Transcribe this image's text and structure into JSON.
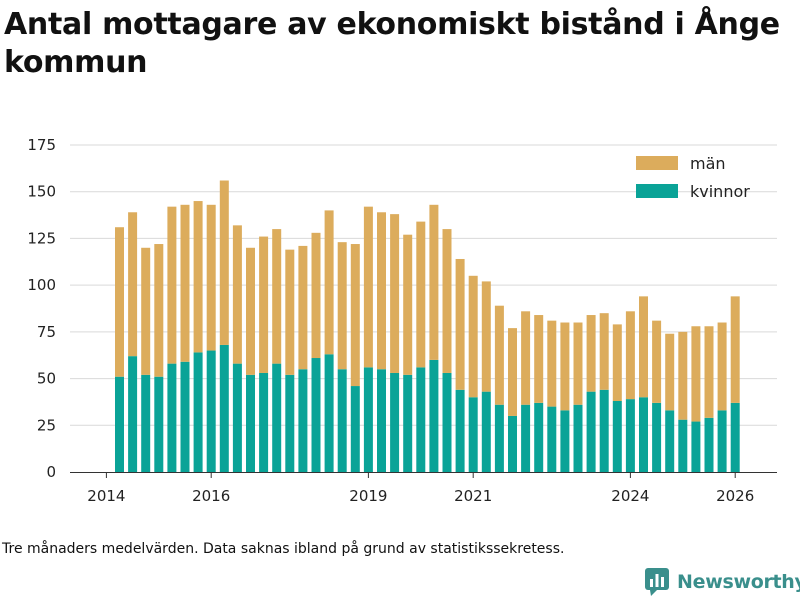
{
  "title": "Antal mottagare av ekonomiskt bistånd i Ånge kommun",
  "footnote": "Tre månaders medelvärden. Data saknas ibland på grund av statistikssekretess.",
  "brand": {
    "name": "Newsworthy",
    "icon": "bar-chart-logo-icon",
    "color": "#3a8f8c"
  },
  "chart_data": {
    "type": "bar",
    "stacked": true,
    "title": "Antal mottagare av ekonomiskt bistånd i Ånge kommun",
    "xlabel": "",
    "ylabel": "",
    "ylim": [
      0,
      175
    ],
    "y_ticks": [
      0,
      25,
      50,
      75,
      100,
      125,
      150,
      175
    ],
    "x_ticks": [
      {
        "label": "2014",
        "year": 2014
      },
      {
        "label": "2016",
        "year": 2016
      },
      {
        "label": "2019",
        "year": 2019
      },
      {
        "label": "2021",
        "year": 2021
      },
      {
        "label": "2024",
        "year": 2024
      },
      {
        "label": "2026",
        "year": 2026
      }
    ],
    "grid": true,
    "legend_position": "top-right",
    "categories": [
      "2014 Q2",
      "2014 Q3",
      "2014 Q4",
      "2015 Q1",
      "2015 Q2",
      "2015 Q3",
      "2015 Q4",
      "2016 Q1",
      "2016 Q2",
      "2016 Q3",
      "2016 Q4",
      "2017 Q1",
      "2017 Q2",
      "2017 Q3",
      "2017 Q4",
      "2018 Q1",
      "2018 Q2",
      "2018 Q3",
      "2018 Q4",
      "2019 Q1",
      "2019 Q2",
      "2019 Q3",
      "2019 Q4",
      "2020 Q1",
      "2020 Q2",
      "2020 Q3",
      "2020 Q4",
      "2021 Q1",
      "2021 Q2",
      "2021 Q3",
      "2021 Q4",
      "2022 Q1",
      "2022 Q2",
      "2022 Q3",
      "2022 Q4",
      "2023 Q1",
      "2023 Q2",
      "2023 Q3",
      "2023 Q4",
      "2024 Q1",
      "2024 Q2",
      "2024 Q3",
      "2024 Q4",
      "2025 Q1",
      "2025 Q2",
      "2025 Q3",
      "2025 Q4",
      "2026 Q1"
    ],
    "series": [
      {
        "name": "kvinnor",
        "color": "#0aa397",
        "values": [
          51,
          62,
          52,
          51,
          58,
          59,
          64,
          65,
          68,
          58,
          52,
          53,
          58,
          52,
          55,
          61,
          63,
          55,
          46,
          56,
          55,
          53,
          52,
          56,
          60,
          53,
          44,
          40,
          43,
          36,
          30,
          36,
          37,
          35,
          33,
          36,
          43,
          44,
          38,
          39,
          40,
          37,
          33,
          28,
          27,
          29,
          33,
          37
        ]
      },
      {
        "name": "män",
        "color": "#dcac5c",
        "values": [
          80,
          77,
          68,
          71,
          84,
          84,
          81,
          78,
          88,
          74,
          68,
          73,
          72,
          67,
          66,
          67,
          77,
          68,
          76,
          86,
          84,
          85,
          75,
          78,
          83,
          77,
          70,
          65,
          59,
          53,
          47,
          50,
          47,
          46,
          47,
          44,
          41,
          41,
          41,
          47,
          54,
          44,
          41,
          47,
          51,
          49,
          47,
          57
        ]
      }
    ]
  }
}
